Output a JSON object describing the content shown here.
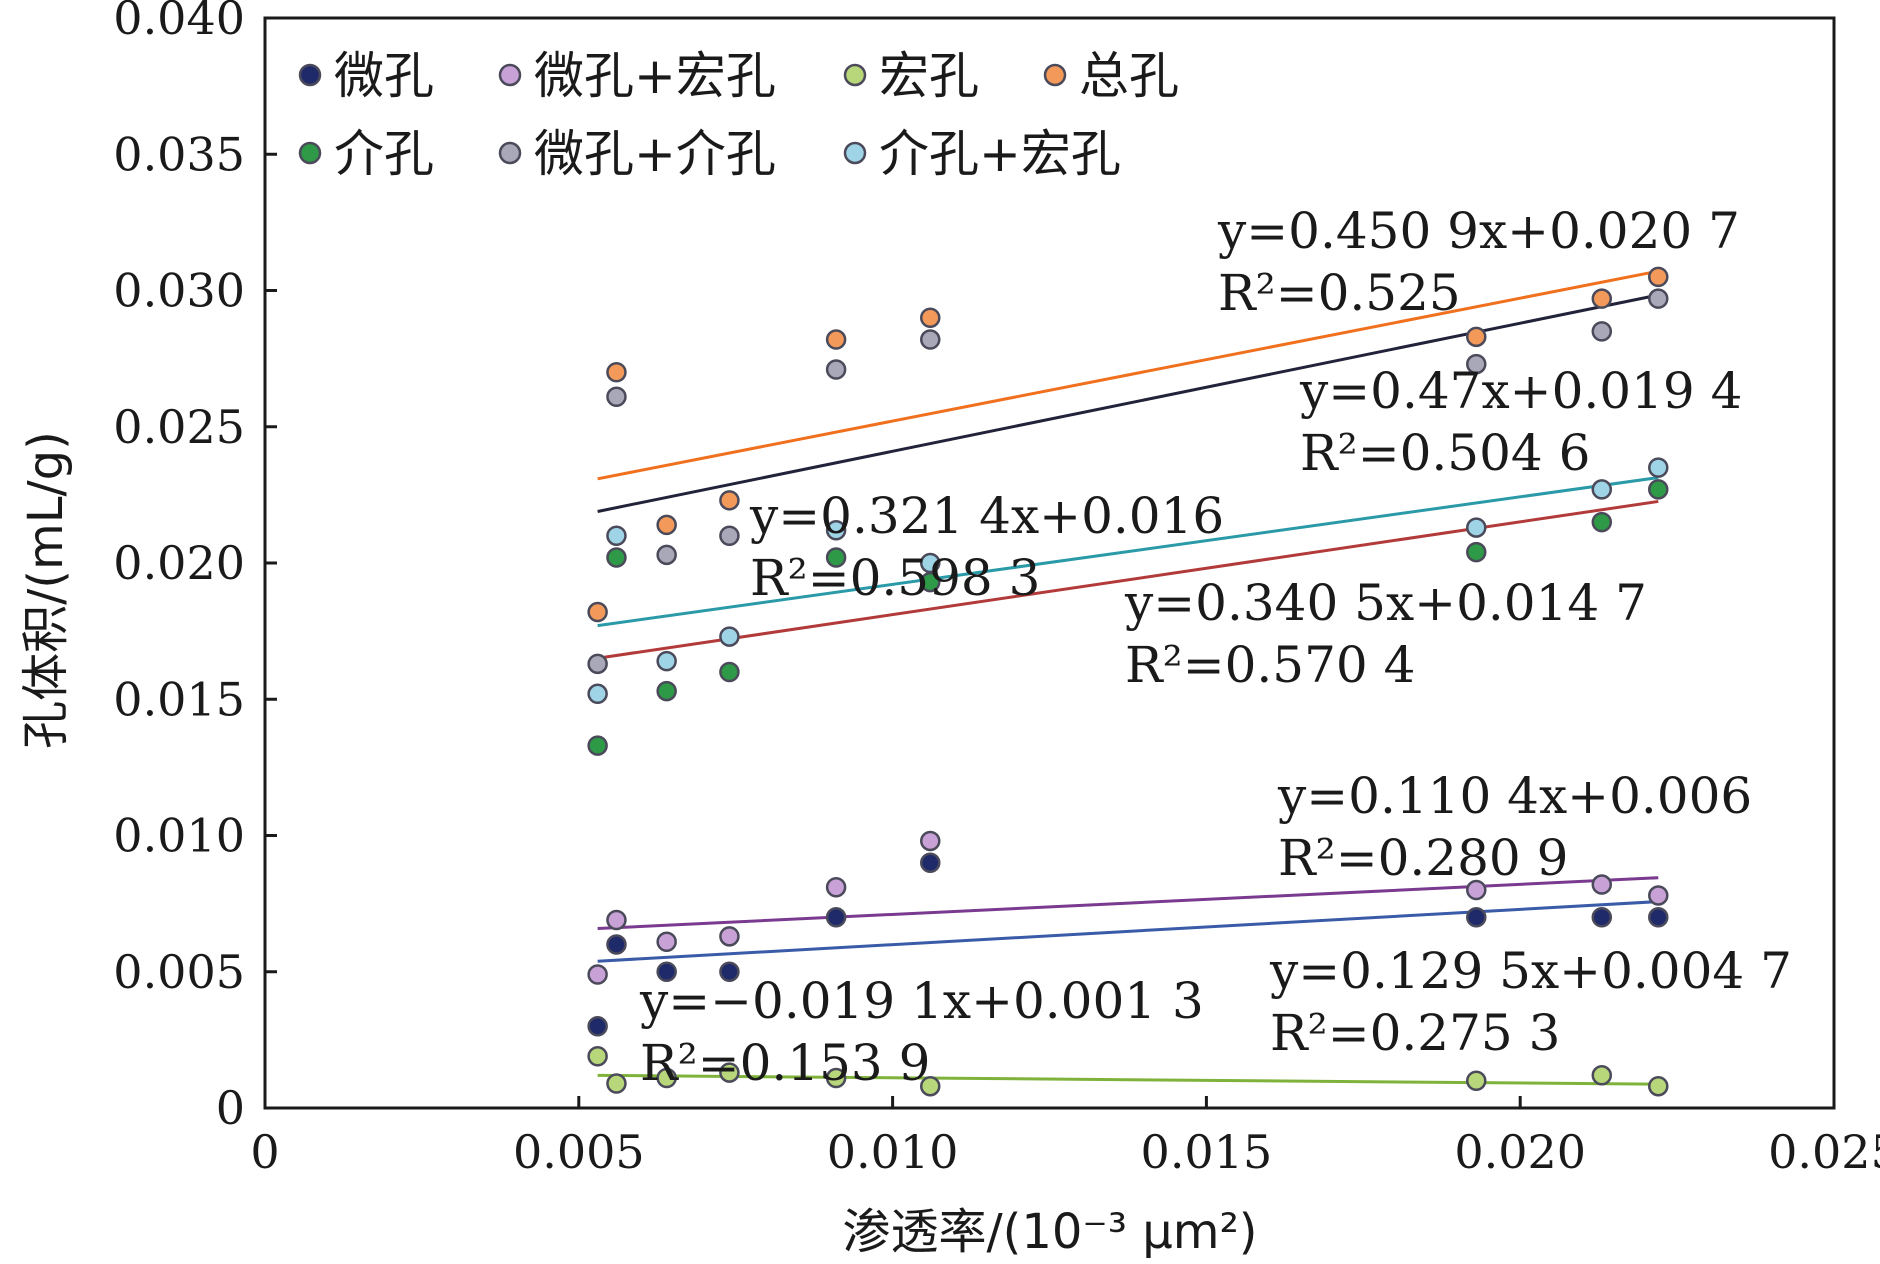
{
  "chart_data": {
    "type": "scatter",
    "xlabel": "渗透率/(10⁻³ μm²)",
    "ylabel": "孔体积/(mL/g)",
    "xlim": [
      0,
      0.025
    ],
    "ylim": [
      0,
      0.04
    ],
    "x_ticks": [
      "0",
      "0.005",
      "0.010",
      "0.015",
      "0.020",
      "0.025"
    ],
    "y_ticks": [
      "0",
      "0.005",
      "0.010",
      "0.015",
      "0.020",
      "0.025",
      "0.030",
      "0.035",
      "0.040"
    ],
    "grid": false,
    "legend_position": "top-left",
    "series": [
      {
        "name": "微孔",
        "color": "#1f2a6b",
        "x": [
          0.0053,
          0.0056,
          0.0064,
          0.0074,
          0.0091,
          0.0106,
          0.0193,
          0.0213,
          0.0222
        ],
        "y": [
          0.003,
          0.006,
          0.005,
          0.005,
          0.007,
          0.009,
          0.007,
          0.007,
          0.007
        ],
        "fit": {
          "slope": 0.1295,
          "intercept": 0.0047,
          "equation": "y=0.129 5x+0.004 7",
          "r2": "R²=0.275 3",
          "line_color": "#3a5ba8"
        }
      },
      {
        "name": "微孔+宏孔",
        "color": "#c8a2d6",
        "x": [
          0.0053,
          0.0056,
          0.0064,
          0.0074,
          0.0091,
          0.0106,
          0.0193,
          0.0213,
          0.0222
        ],
        "y": [
          0.0049,
          0.0069,
          0.0061,
          0.0063,
          0.0081,
          0.0098,
          0.008,
          0.0082,
          0.0078
        ],
        "fit": {
          "slope": 0.1104,
          "intercept": 0.006,
          "equation": "y=0.110 4x+0.006",
          "r2": "R²=0.280 9",
          "line_color": "#7a3a8f"
        }
      },
      {
        "name": "宏孔",
        "color": "#b8d67a",
        "x": [
          0.0053,
          0.0056,
          0.0064,
          0.0074,
          0.0091,
          0.0106,
          0.0193,
          0.0213,
          0.0222
        ],
        "y": [
          0.0019,
          0.0009,
          0.0011,
          0.0013,
          0.0011,
          0.0008,
          0.001,
          0.0012,
          0.0008
        ],
        "fit": {
          "slope": -0.0191,
          "intercept": 0.0013,
          "equation": "y=−0.019 1x+0.001 3",
          "r2": "R²=0.153 9",
          "line_color": "#7fb23a"
        }
      },
      {
        "name": "总孔",
        "color": "#f39a5a",
        "x": [
          0.0053,
          0.0056,
          0.0064,
          0.0074,
          0.0091,
          0.0106,
          0.0193,
          0.0213,
          0.0222
        ],
        "y": [
          0.0182,
          0.027,
          0.0214,
          0.0223,
          0.0282,
          0.029,
          0.0283,
          0.0297,
          0.0305
        ],
        "fit": {
          "slope": 0.4509,
          "intercept": 0.0207,
          "equation": "y=0.450 9x+0.020 7",
          "r2": "R²=0.525",
          "line_color": "#f0701e"
        }
      },
      {
        "name": "介孔",
        "color": "#2e9a47",
        "x": [
          0.0053,
          0.0056,
          0.0064,
          0.0074,
          0.0091,
          0.0106,
          0.0193,
          0.0213,
          0.0222
        ],
        "y": [
          0.0133,
          0.0202,
          0.0153,
          0.016,
          0.0202,
          0.0193,
          0.0204,
          0.0215,
          0.0227
        ],
        "fit": {
          "slope": 0.3405,
          "intercept": 0.0147,
          "equation": "y=0.340 5x+0.014 7",
          "r2": "R²=0.570 4",
          "line_color": "#b23a3a"
        }
      },
      {
        "name": "微孔+介孔",
        "color": "#a8a8b8",
        "x": [
          0.0053,
          0.0056,
          0.0064,
          0.0074,
          0.0091,
          0.0106,
          0.0193,
          0.0213,
          0.0222
        ],
        "y": [
          0.0163,
          0.0261,
          0.0203,
          0.021,
          0.0271,
          0.0282,
          0.0273,
          0.0285,
          0.0297
        ],
        "fit": {
          "slope": 0.47,
          "intercept": 0.0194,
          "equation": "y=0.47x+0.019 4",
          "r2": "R²=0.504 6",
          "line_color": "#22223a"
        }
      },
      {
        "name": "介孔+宏孔",
        "color": "#9fd3e6",
        "x": [
          0.0053,
          0.0056,
          0.0064,
          0.0074,
          0.0091,
          0.0106,
          0.0193,
          0.0213,
          0.0222
        ],
        "y": [
          0.0152,
          0.021,
          0.0164,
          0.0173,
          0.0212,
          0.02,
          0.0213,
          0.0227,
          0.0235
        ],
        "fit": {
          "slope": 0.3214,
          "intercept": 0.016,
          "equation": "y=0.321 4x+0.016",
          "r2": "R²=0.598 3",
          "line_color": "#2a9aa8"
        }
      }
    ]
  }
}
